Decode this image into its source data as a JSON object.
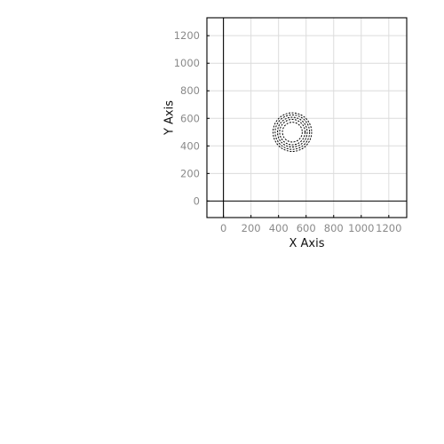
{
  "chart_data": {
    "type": "scatter",
    "title": "",
    "xlabel": "X Axis",
    "ylabel": "Y Axis",
    "xlim": [
      -120,
      1330
    ],
    "ylim": [
      -120,
      1330
    ],
    "x_ticks": [
      0,
      200,
      400,
      600,
      800,
      1000,
      1200
    ],
    "y_ticks": [
      0,
      200,
      400,
      600,
      800,
      1000,
      1200
    ],
    "x_tick_labels": [
      "0",
      "200",
      "400",
      "600",
      "800",
      "1000",
      "1200"
    ],
    "y_tick_labels": [
      "0",
      "200",
      "400",
      "600",
      "800",
      "1000",
      "1200"
    ],
    "grid": true,
    "zero_lines": true,
    "series": [
      {
        "marker": "dashed-ring",
        "color": "#000000",
        "points": [
          {
            "x": 500,
            "y": 500,
            "r": 140
          },
          {
            "x": 500,
            "y": 500,
            "r": 125
          },
          {
            "x": 500,
            "y": 500,
            "r": 108
          },
          {
            "x": 500,
            "y": 500,
            "r": 92
          },
          {
            "x": 500,
            "y": 500,
            "r": 72
          }
        ]
      }
    ]
  }
}
